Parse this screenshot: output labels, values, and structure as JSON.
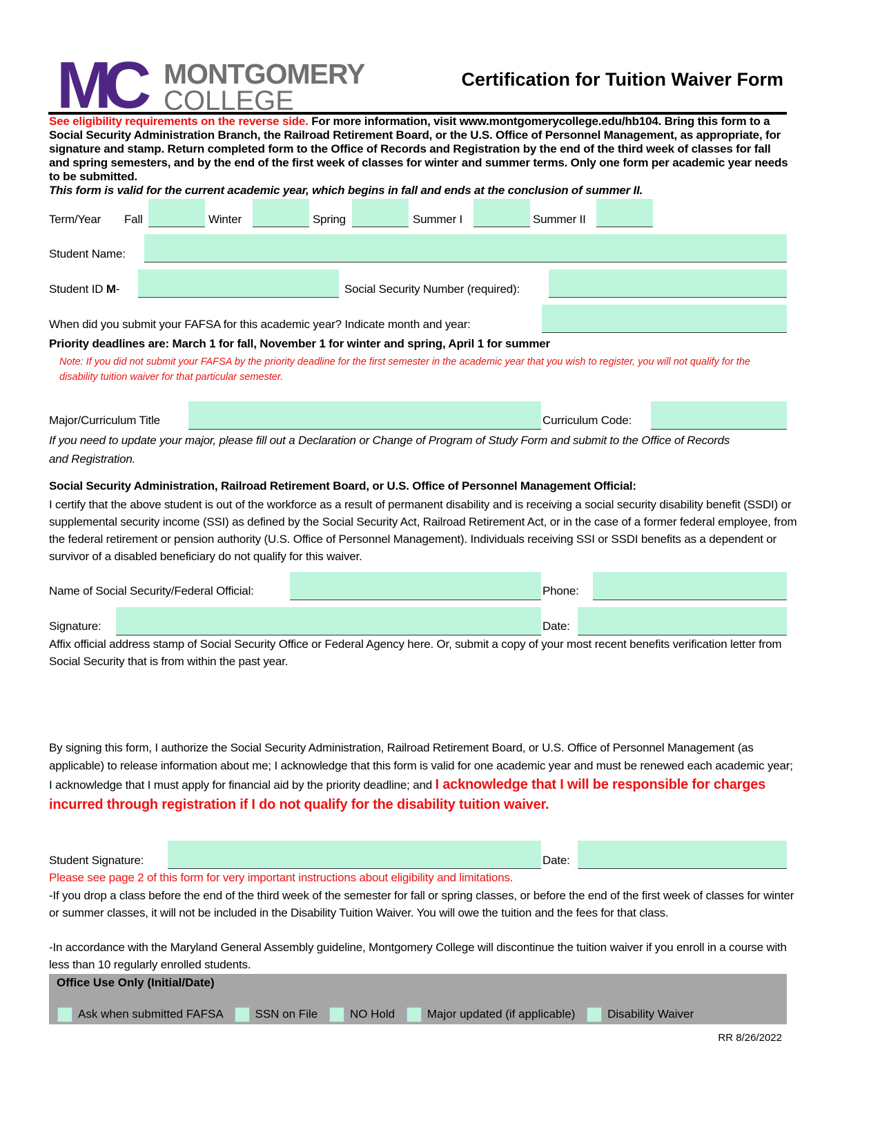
{
  "header": {
    "logo_mark": "MC",
    "logo_line1": "MONTGOMERY",
    "logo_line2": "COLLEGE",
    "title": "Certification for Tuition Waiver Form"
  },
  "intro": {
    "red": "See eligibility requirements on the reverse side.",
    "text": " For more information, visit www.montgomerycollege.edu/hb104. Bring this form to a Social Security Administration Branch, the Railroad Retirement Board, or the U.S. Office of Personnel Management, as appropriate, for signature and stamp. Return completed form to the Office of Records and Registration by the end of the third week of classes for fall and spring semesters, and by the end of the first week of classes for winter and summer terms. Only one form per academic year needs to be submitted.",
    "italic": "This form is valid for the current academic year, which begins in fall and ends at the conclusion of summer II."
  },
  "term": {
    "label": "Term/Year",
    "fall": "Fall",
    "winter": "Winter",
    "spring": "Spring",
    "summer1": "Summer I",
    "summer2": "Summer II"
  },
  "student_name": "Student Name:",
  "student_id": {
    "label": "Student ID ",
    "prefix": "M",
    "suffix": "-"
  },
  "ssn": "Social Security Number (required):",
  "fafsa": "When did you submit your FAFSA for this academic year? Indicate month and year:",
  "priority": "Priority deadlines are: March 1 for fall, November 1 for winter and spring, April 1 for summer",
  "note": "Note: If you did not submit your FAFSA by the priority deadline for the first semester in the academic year that you wish to register, you will not qualify for the disability tuition waiver for that particular semester.",
  "major": "Major/Curriculum Title",
  "curriculum_code": "Curriculum Code:",
  "major_note": "If you need to update your major, please fill out a Declaration or Change of Program of Study Form and submit to the Office of Records and Registration.",
  "official": {
    "heading": "Social Security Administration, Railroad Retirement Board, or U.S. Office of Personnel Management Official:",
    "text": "I certify that the above student is out of the workforce as a result of permanent disability and is receiving a social security disability benefit (SSDI) or supplemental security income (SSI) as defined by the Social Security Act, Railroad Retirement Act, or in the case of a former federal employee, from the federal retirement or pension authority (U.S. Office of Personnel Management). Individuals receiving SSI or SSDI benefits as a dependent or survivor of a disabled beneficiary do not qualify for this waiver.",
    "name_label": "Name of Social Security/Federal Official:",
    "phone_label": "Phone:",
    "signature_label": "Signature:",
    "date_label": "Date:",
    "stamp_text": "Affix official address stamp of Social Security Office or Federal Agency here. Or, submit a copy of your most recent benefits verification letter from Social Security that is from within the past year."
  },
  "authorize": {
    "text": "By signing this form, I authorize the Social Security Administration, Railroad Retirement Board, or U.S. Office of Personnel Management (as applicable) to release information about me; I acknowledge that this form is valid for one academic year and must be renewed each academic year; I acknowledge that I must apply for financial aid by the priority deadline; and ",
    "red": "I acknowledge that I will be responsible for charges incurred through registration if I do not qualify for the disability tuition waiver."
  },
  "student_signature": "Student Signature:",
  "date_label": "Date:",
  "see_page2": "Please see page 2 of this form for very important instructions about eligibility and limitations.",
  "drop_note": "-If you drop a class before the end of the third week of the semester for fall or spring classes, or before the end of the first week of classes for winter or summer classes, it will not be included in the Disability Tuition Waiver. You will owe  the tuition and the fees for that class.",
  "assembly_note": "-In accordance with the Maryland General Assembly guideline, Montgomery College will discontinue the tuition waiver if you enroll in a course with less than 10 regularly enrolled students.",
  "office": {
    "title": "Office Use Only (Initial/Date)",
    "items": [
      "Ask when submitted FAFSA",
      "SSN on File",
      "NO Hold",
      "Major updated (if applicable)",
      "Disability Waiver"
    ]
  },
  "footer": "RR 8/26/2022",
  "colors": {
    "purple": "#4f2683",
    "gray": "#707070",
    "field": "#bff5dc",
    "red": "#ee1111",
    "office_bg": "#a6a6a6"
  }
}
